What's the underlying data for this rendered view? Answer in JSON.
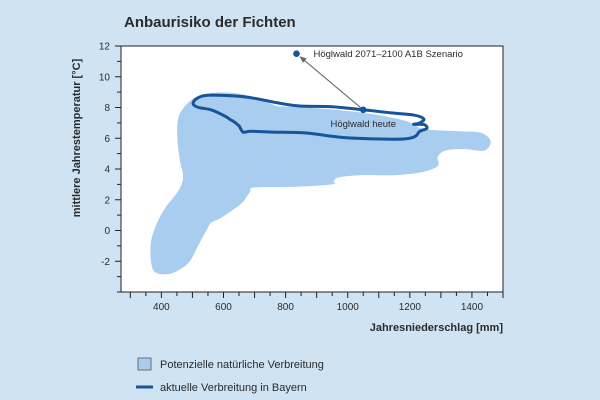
{
  "chart_data": {
    "type": "area",
    "title": "Anbaurisiko der Fichten",
    "xlabel": "Jahresniederschlag [mm]",
    "ylabel": "mittlere Jahrestemperatur [°C]",
    "xlim": [
      270,
      1500
    ],
    "ylim": [
      -4,
      12
    ],
    "x_ticks": [
      400,
      600,
      800,
      1000,
      1200,
      1400
    ],
    "y_ticks": [
      -2,
      0,
      2,
      4,
      6,
      8,
      10,
      12
    ],
    "grid": false,
    "legend_position": "bottom",
    "series": [
      {
        "name": "Potenzielle natürliche Verbreitung",
        "kind": "filled-area",
        "color": "#a9cdee",
        "points": [
          [
            370,
            -2.4
          ],
          [
            365,
            -1.0
          ],
          [
            380,
            0.2
          ],
          [
            410,
            1.4
          ],
          [
            455,
            2.6
          ],
          [
            470,
            3.5
          ],
          [
            460,
            4.5
          ],
          [
            452,
            5.8
          ],
          [
            452,
            7.0
          ],
          [
            465,
            7.8
          ],
          [
            505,
            8.6
          ],
          [
            565,
            8.95
          ],
          [
            650,
            8.9
          ],
          [
            725,
            8.5
          ],
          [
            770,
            8.1
          ],
          [
            810,
            8.05
          ],
          [
            935,
            7.9
          ],
          [
            1085,
            7.55
          ],
          [
            1190,
            7.1
          ],
          [
            1245,
            6.6
          ],
          [
            1360,
            6.45
          ],
          [
            1430,
            6.35
          ],
          [
            1460,
            5.8
          ],
          [
            1440,
            5.2
          ],
          [
            1375,
            5.3
          ],
          [
            1315,
            5.2
          ],
          [
            1290,
            4.8
          ],
          [
            1290,
            4.2
          ],
          [
            1240,
            3.8
          ],
          [
            1150,
            3.6
          ],
          [
            1040,
            3.6
          ],
          [
            970,
            3.45
          ],
          [
            955,
            3.2
          ],
          [
            950,
            3.0
          ],
          [
            830,
            2.85
          ],
          [
            700,
            2.8
          ],
          [
            685,
            2.5
          ],
          [
            660,
            1.8
          ],
          [
            620,
            1.2
          ],
          [
            590,
            0.8
          ],
          [
            560,
            0.5
          ],
          [
            545,
            0.0
          ],
          [
            518,
            -1.0
          ],
          [
            495,
            -1.9
          ],
          [
            470,
            -2.4
          ],
          [
            430,
            -2.8
          ],
          [
            390,
            -2.8
          ]
        ]
      },
      {
        "name": "aktuelle Verbreitung in Bayern",
        "kind": "outline",
        "color": "#17549a",
        "points": [
          [
            515,
            8.6
          ],
          [
            550,
            8.8
          ],
          [
            640,
            8.75
          ],
          [
            700,
            8.6
          ],
          [
            775,
            8.3
          ],
          [
            845,
            8.1
          ],
          [
            950,
            8.05
          ],
          [
            1050,
            7.85
          ],
          [
            1140,
            7.65
          ],
          [
            1215,
            7.5
          ],
          [
            1245,
            7.25
          ],
          [
            1232,
            7.0
          ],
          [
            1212,
            6.9
          ],
          [
            1245,
            6.9
          ],
          [
            1255,
            6.65
          ],
          [
            1232,
            6.45
          ],
          [
            1222,
            6.2
          ],
          [
            1210,
            6.05
          ],
          [
            1180,
            5.95
          ],
          [
            1105,
            5.95
          ],
          [
            985,
            6.05
          ],
          [
            862,
            6.35
          ],
          [
            762,
            6.4
          ],
          [
            688,
            6.45
          ],
          [
            663,
            6.4
          ],
          [
            650,
            6.8
          ],
          [
            632,
            7.1
          ],
          [
            623,
            7.2
          ],
          [
            604,
            7.45
          ],
          [
            560,
            7.85
          ],
          [
            520,
            8.0
          ],
          [
            502,
            8.25
          ]
        ]
      }
    ],
    "annotations": [
      {
        "text": "Höglwald heute",
        "x": 1050,
        "y": 7.85,
        "color": "#17549a"
      },
      {
        "text": "Höglwald 2071–2100 A1B Szenario",
        "x": 835,
        "y": 11.5,
        "color": "#17549a"
      }
    ],
    "arrow": {
      "from": [
        1050,
        7.85
      ],
      "to": [
        835,
        11.5
      ],
      "color": "#6b6b6b"
    }
  }
}
